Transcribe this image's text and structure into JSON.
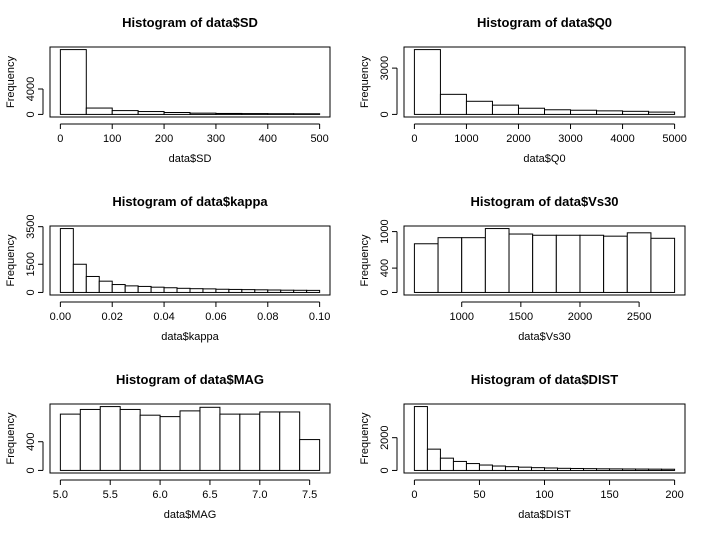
{
  "chart_data": [
    {
      "type": "histogram",
      "title": "Histogram of data$SD",
      "xlabel": "data$SD",
      "ylabel": "Frequency",
      "color": "#ffffff",
      "bins": [
        0,
        50,
        100,
        150,
        200,
        250,
        300,
        350,
        400,
        450,
        500
      ],
      "values": [
        10200,
        1000,
        600,
        450,
        300,
        200,
        150,
        130,
        110,
        100
      ],
      "xlim": [
        -20,
        520
      ],
      "ylim": [
        -408,
        10608
      ],
      "xticks": [
        0,
        100,
        200,
        300,
        400,
        500
      ],
      "yticks": [
        0,
        4000
      ]
    },
    {
      "type": "histogram",
      "title": "Histogram of data$Q0",
      "xlabel": "data$Q0",
      "ylabel": "Frequency",
      "color": "#ffffff",
      "bins": [
        0,
        500,
        1000,
        1500,
        2000,
        2500,
        3000,
        3500,
        4000,
        4500,
        5000
      ],
      "values": [
        4200,
        1300,
        850,
        600,
        400,
        300,
        270,
        230,
        200,
        150
      ],
      "xlim": [
        -200,
        5200
      ],
      "ylim": [
        -168,
        4368
      ],
      "xticks": [
        0,
        1000,
        2000,
        3000,
        4000,
        5000
      ],
      "yticks": [
        0,
        3000
      ]
    },
    {
      "type": "histogram",
      "title": "Histogram of data$kappa",
      "xlabel": "data$kappa",
      "ylabel": "Frequency",
      "color": "#ffffff",
      "bins": [
        0,
        0.005,
        0.01,
        0.015,
        0.02,
        0.025,
        0.03,
        0.035,
        0.04,
        0.045,
        0.05,
        0.055,
        0.06,
        0.065,
        0.07,
        0.075,
        0.08,
        0.085,
        0.09,
        0.095,
        0.1
      ],
      "values": [
        3400,
        1500,
        850,
        600,
        420,
        350,
        320,
        280,
        250,
        220,
        200,
        190,
        170,
        160,
        150,
        140,
        130,
        120,
        115,
        110
      ],
      "xlim": [
        -0.004,
        0.104
      ],
      "ylim": [
        -136,
        3536
      ],
      "xticks": [
        {
          "value": 0,
          "label": "0.00"
        },
        0.02,
        0.04,
        0.06,
        0.08,
        {
          "value": 0.1,
          "label": "0.10"
        }
      ],
      "yticks": [
        0,
        1500,
        3500
      ]
    },
    {
      "type": "histogram",
      "title": "Histogram of data$Vs30",
      "xlabel": "data$Vs30",
      "ylabel": "Frequency",
      "color": "#ffffff",
      "bins": [
        600,
        800,
        1000,
        1200,
        1400,
        1600,
        1800,
        2000,
        2200,
        2400,
        2600,
        2800
      ],
      "values": [
        800,
        900,
        900,
        1050,
        960,
        940,
        940,
        940,
        925,
        980,
        890
      ],
      "xlim": [
        512,
        2888
      ],
      "ylim": [
        -42,
        1092
      ],
      "xticks": [
        1000,
        1500,
        2000,
        2500
      ],
      "yticks": [
        0,
        400,
        1000
      ]
    },
    {
      "type": "histogram",
      "title": "Histogram of data$MAG",
      "xlabel": "data$MAG",
      "ylabel": "Frequency",
      "color": "#ffffff",
      "bins": [
        5,
        5.2,
        5.4,
        5.6,
        5.8,
        6,
        6.2,
        6.4,
        6.6,
        6.8,
        7,
        7.2,
        7.4,
        7.6
      ],
      "values": [
        785,
        850,
        890,
        850,
        770,
        750,
        830,
        880,
        785,
        785,
        815,
        815,
        430
      ],
      "xlim": [
        4.896,
        7.704
      ],
      "ylim": [
        -36,
        926
      ],
      "xticks": [
        {
          "value": 5,
          "label": "5.0"
        },
        5.5,
        {
          "value": 6,
          "label": "6.0"
        },
        6.5,
        {
          "value": 7,
          "label": "7.0"
        },
        7.5
      ],
      "yticks": [
        0,
        400
      ]
    },
    {
      "type": "histogram",
      "title": "Histogram of data$DIST",
      "xlabel": "data$DIST",
      "ylabel": "Frequency",
      "color": "#ffffff",
      "bins": [
        0,
        10,
        20,
        30,
        40,
        50,
        60,
        70,
        80,
        90,
        100,
        110,
        120,
        130,
        140,
        150,
        160,
        170,
        180,
        190,
        200
      ],
      "values": [
        3900,
        1300,
        750,
        550,
        420,
        330,
        270,
        230,
        200,
        170,
        150,
        130,
        120,
        110,
        100,
        95,
        90,
        85,
        80,
        75
      ],
      "xlim": [
        -8,
        208
      ],
      "ylim": [
        -156,
        4056
      ],
      "xticks": [
        0,
        50,
        100,
        150,
        200
      ],
      "yticks": [
        0,
        2000
      ]
    }
  ]
}
